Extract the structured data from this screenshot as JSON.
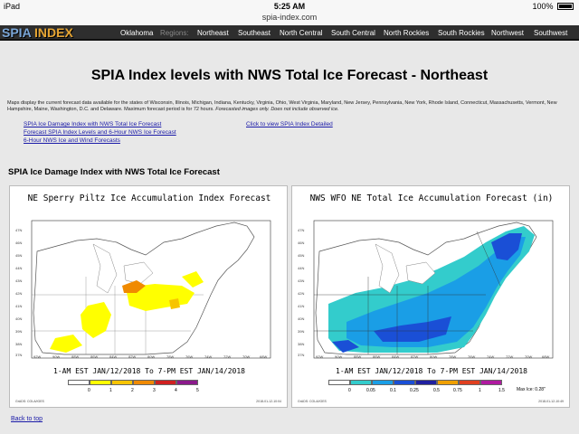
{
  "status": {
    "device": "iPad",
    "time": "5:25 AM",
    "battery": "100%",
    "url": "spia-index.com"
  },
  "nav": {
    "logo_a": "SPIA",
    "logo_b": "INDEX",
    "items": [
      "Oklahoma",
      "Regions:",
      "Northeast",
      "Southeast",
      "North Central",
      "South Central",
      "North Rockies",
      "South Rockies",
      "Northwest",
      "Southwest"
    ]
  },
  "page": {
    "title": "SPIA Index levels with NWS Total Ice Forecast - Northeast",
    "description": "Maps display the current forecast data available for the states of Wisconsin, Illinois, Michigan, Indiana, Kentucky, Virginia, Ohio, West Virginia, Maryland, New Jersey, Pennsylvania, New York, Rhode Island, Connecticut, Massachusetts, Vermont, New Hampshire, Maine, Washington, D.C. and Delaware. Maximum forecast period is for 72 hours.",
    "description_italic": "Forecasted images only. Does not include observed ice.",
    "links": {
      "damage_index": "SPIA Ice Damage Index with NWS Total Ice Forecast",
      "levels_6hr": "Forecast SPIA Index Levels and 6-Hour NWS Ice Forecast",
      "wind_6hr": "6-Hour NWS Ice and Wind Forecasts",
      "detailed": "Click to view SPIA Index Detailed"
    },
    "section_title": "SPIA Ice Damage Index with NWS Total Ice Forecast",
    "back_to_top": "Back to top"
  },
  "maps": {
    "left": {
      "title": "NE Sperry Piltz Ice Accumulation Index Forecast",
      "caption": "1-AM EST JAN/12/2018 To 7-PM EST JAN/14/2018",
      "legend": [
        "0",
        "1",
        "2",
        "3",
        "4",
        "5"
      ],
      "legend_colors": [
        "#ffffff",
        "#ffff00",
        "#f7c400",
        "#f08a00",
        "#d02020",
        "#8b1a8b"
      ],
      "footer_left": "GrADS: COLA/IGES",
      "footer_right": "2018-01-12-10:04"
    },
    "right": {
      "title": "NWS WFO NE Total Ice Accumulation Forecast (in)",
      "caption": "1-AM EST JAN/12/2018 To 7-PM EST JAN/14/2018",
      "legend": [
        "0",
        "0.05",
        "0.1",
        "0.25",
        "0.5",
        "0.75",
        "1",
        "1.5"
      ],
      "legend_colors": [
        "#ffffff",
        "#33cccc",
        "#1a9ee6",
        "#1a4fd6",
        "#2020a0",
        "#f0a000",
        "#e04020",
        "#b01aa0"
      ],
      "max_ice": "Max Ice: 0.28\"",
      "footer_left": "GrADS: COLA/IGES",
      "footer_right": "2018-01-12-10:49"
    },
    "lat_labels": [
      "47N",
      "46N",
      "45N",
      "44N",
      "43N",
      "42N",
      "41N",
      "40N",
      "39N",
      "38N",
      "37N"
    ],
    "lon_labels": [
      "92W",
      "90W",
      "88W",
      "86W",
      "84W",
      "82W",
      "80W",
      "78W",
      "76W",
      "74W",
      "72W",
      "70W",
      "68W"
    ]
  }
}
